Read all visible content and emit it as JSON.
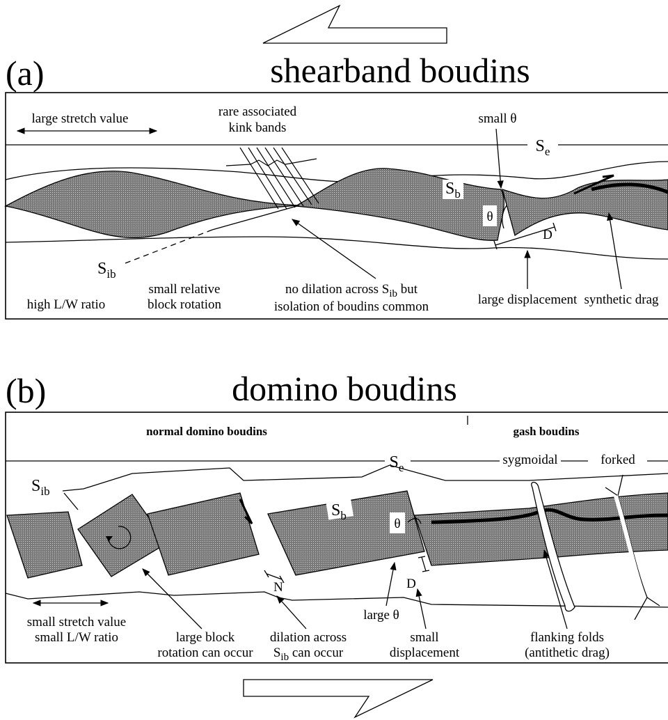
{
  "panel_a": {
    "label": "(a)",
    "title": "shearband boudins",
    "stretch": "large stretch value",
    "kink": [
      "rare associated",
      "kink bands"
    ],
    "small_theta": "small θ",
    "se": {
      "base": "S",
      "sub": "e"
    },
    "sb": {
      "base": "S",
      "sub": "b"
    },
    "theta": "θ",
    "d": "D",
    "sib": {
      "base": "S",
      "sub": "ib"
    },
    "lw": "high L/W ratio",
    "rotation": [
      "small relative",
      "block rotation"
    ],
    "dilation": {
      "line1": [
        "no dilation across ",
        "S",
        "ib",
        " but"
      ],
      "line2": "isolation of boudins common"
    },
    "displacement": "large displacement",
    "drag": "synthetic drag"
  },
  "panel_b": {
    "label": "(b)",
    "title": "domino boudins",
    "normal": "normal domino boudins",
    "gash": "gash boudins",
    "se": {
      "base": "S",
      "sub": "e"
    },
    "sygmoidal": "sygmoidal",
    "forked": "forked",
    "sib": {
      "base": "S",
      "sub": "ib"
    },
    "sb": {
      "base": "S",
      "sub": "b"
    },
    "theta": "θ",
    "n": "N",
    "d": "D",
    "stretch": [
      "small stretch value",
      "small L/W ratio"
    ],
    "rotation": [
      "large block",
      "rotation can occur"
    ],
    "dilation": {
      "line1": "dilation across",
      "line2": [
        "S",
        "ib",
        " can occur"
      ]
    },
    "large_theta": "large θ",
    "displacement": [
      "small",
      "displacement"
    ],
    "flanking": [
      "flanking folds",
      "(antithetic drag)"
    ]
  }
}
